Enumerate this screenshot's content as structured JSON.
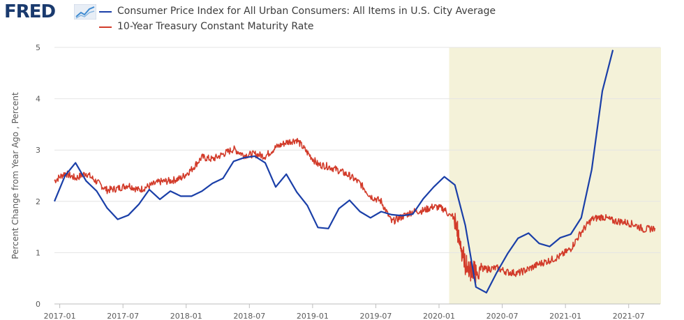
{
  "header": {
    "logo": "FRED",
    "logo_icon": "trend-chart-icon"
  },
  "colors": {
    "series_cpi": "#1a3fa8",
    "series_treasury": "#d23b2a",
    "recession_band": "#f4f2d9",
    "grid": "#e4e4e4"
  },
  "chart_data": {
    "type": "line",
    "title": "",
    "xlabel": "",
    "ylabel": "Percent Change from Year Ago , Percent",
    "ylim": [
      0,
      5
    ],
    "xlim": [
      2016.958,
      2021.75
    ],
    "yticks": [
      0,
      1,
      2,
      3,
      4,
      5
    ],
    "xticks": [
      {
        "label": "2017-01",
        "x": 2017.0
      },
      {
        "label": "2017-07",
        "x": 2017.5
      },
      {
        "label": "2018-01",
        "x": 2018.0
      },
      {
        "label": "2018-07",
        "x": 2018.5
      },
      {
        "label": "2019-01",
        "x": 2019.0
      },
      {
        "label": "2019-07",
        "x": 2019.5
      },
      {
        "label": "2020-01",
        "x": 2020.0
      },
      {
        "label": "2020-07",
        "x": 2020.5
      },
      {
        "label": "2021-01",
        "x": 2021.0
      },
      {
        "label": "2021-07",
        "x": 2021.5
      }
    ],
    "shaded_regions": [
      {
        "start": 2020.08,
        "end": 2021.75,
        "label": "recession"
      }
    ],
    "series": [
      {
        "name": "Consumer Price Index for All Urban Consumers: All Items in U.S. City Average",
        "color": "#1a3fa8",
        "x": [
          2016.958,
          2017.042,
          2017.125,
          2017.208,
          2017.292,
          2017.375,
          2017.458,
          2017.542,
          2017.625,
          2017.708,
          2017.792,
          2017.875,
          2017.958,
          2018.042,
          2018.125,
          2018.208,
          2018.292,
          2018.375,
          2018.458,
          2018.542,
          2018.625,
          2018.708,
          2018.792,
          2018.875,
          2018.958,
          2019.042,
          2019.125,
          2019.208,
          2019.292,
          2019.375,
          2019.458,
          2019.542,
          2019.625,
          2019.708,
          2019.792,
          2019.875,
          2019.958,
          2020.042,
          2020.125,
          2020.208,
          2020.292,
          2020.375,
          2020.458,
          2020.542,
          2020.625,
          2020.708,
          2020.792,
          2020.875,
          2020.958,
          2021.042,
          2021.125,
          2021.208,
          2021.292
        ],
        "values": [
          2.0,
          2.5,
          2.75,
          2.4,
          2.2,
          1.87,
          1.65,
          1.73,
          1.94,
          2.23,
          2.04,
          2.2,
          2.1,
          2.1,
          2.2,
          2.35,
          2.45,
          2.78,
          2.85,
          2.88,
          2.75,
          2.28,
          2.53,
          2.18,
          1.92,
          1.49,
          1.47,
          1.86,
          2.02,
          1.8,
          1.68,
          1.8,
          1.74,
          1.72,
          1.75,
          2.05,
          2.28,
          2.48,
          2.32,
          1.53,
          0.33,
          0.22,
          0.62,
          0.98,
          1.28,
          1.38,
          1.18,
          1.12,
          1.29,
          1.36,
          1.68,
          2.62,
          4.15
        ]
      },
      {
        "name": "10-Year Treasury Constant Maturity Rate",
        "color": "#d23b2a",
        "x": [
          2016.958,
          2017.042,
          2017.125,
          2017.208,
          2017.292,
          2017.375,
          2017.458,
          2017.542,
          2017.625,
          2017.708,
          2017.792,
          2017.875,
          2017.958,
          2018.042,
          2018.125,
          2018.208,
          2018.292,
          2018.375,
          2018.458,
          2018.542,
          2018.625,
          2018.708,
          2018.792,
          2018.875,
          2018.958,
          2019.042,
          2019.125,
          2019.208,
          2019.292,
          2019.375,
          2019.458,
          2019.542,
          2019.625,
          2019.708,
          2019.792,
          2019.875,
          2019.958,
          2020.042,
          2020.125,
          2020.167,
          2020.208,
          2020.25,
          2020.292,
          2020.375,
          2020.458,
          2020.542,
          2020.625,
          2020.708,
          2020.792,
          2020.875,
          2020.958,
          2021.042,
          2021.125,
          2021.208,
          2021.292,
          2021.375,
          2021.458,
          2021.542,
          2021.625,
          2021.708
        ],
        "values": [
          2.4,
          2.55,
          2.45,
          2.55,
          2.38,
          2.22,
          2.25,
          2.32,
          2.22,
          2.3,
          2.38,
          2.4,
          2.45,
          2.62,
          2.86,
          2.82,
          2.92,
          3.02,
          2.9,
          2.92,
          2.88,
          3.05,
          3.15,
          3.2,
          2.95,
          2.72,
          2.68,
          2.6,
          2.5,
          2.35,
          2.1,
          2.0,
          1.6,
          1.7,
          1.8,
          1.82,
          1.9,
          1.85,
          1.6,
          1.2,
          0.75,
          0.65,
          0.65,
          0.68,
          0.7,
          0.62,
          0.6,
          0.68,
          0.78,
          0.85,
          0.93,
          1.08,
          1.4,
          1.65,
          1.7,
          1.62,
          1.6,
          1.55,
          1.45,
          1.48
        ]
      }
    ]
  }
}
